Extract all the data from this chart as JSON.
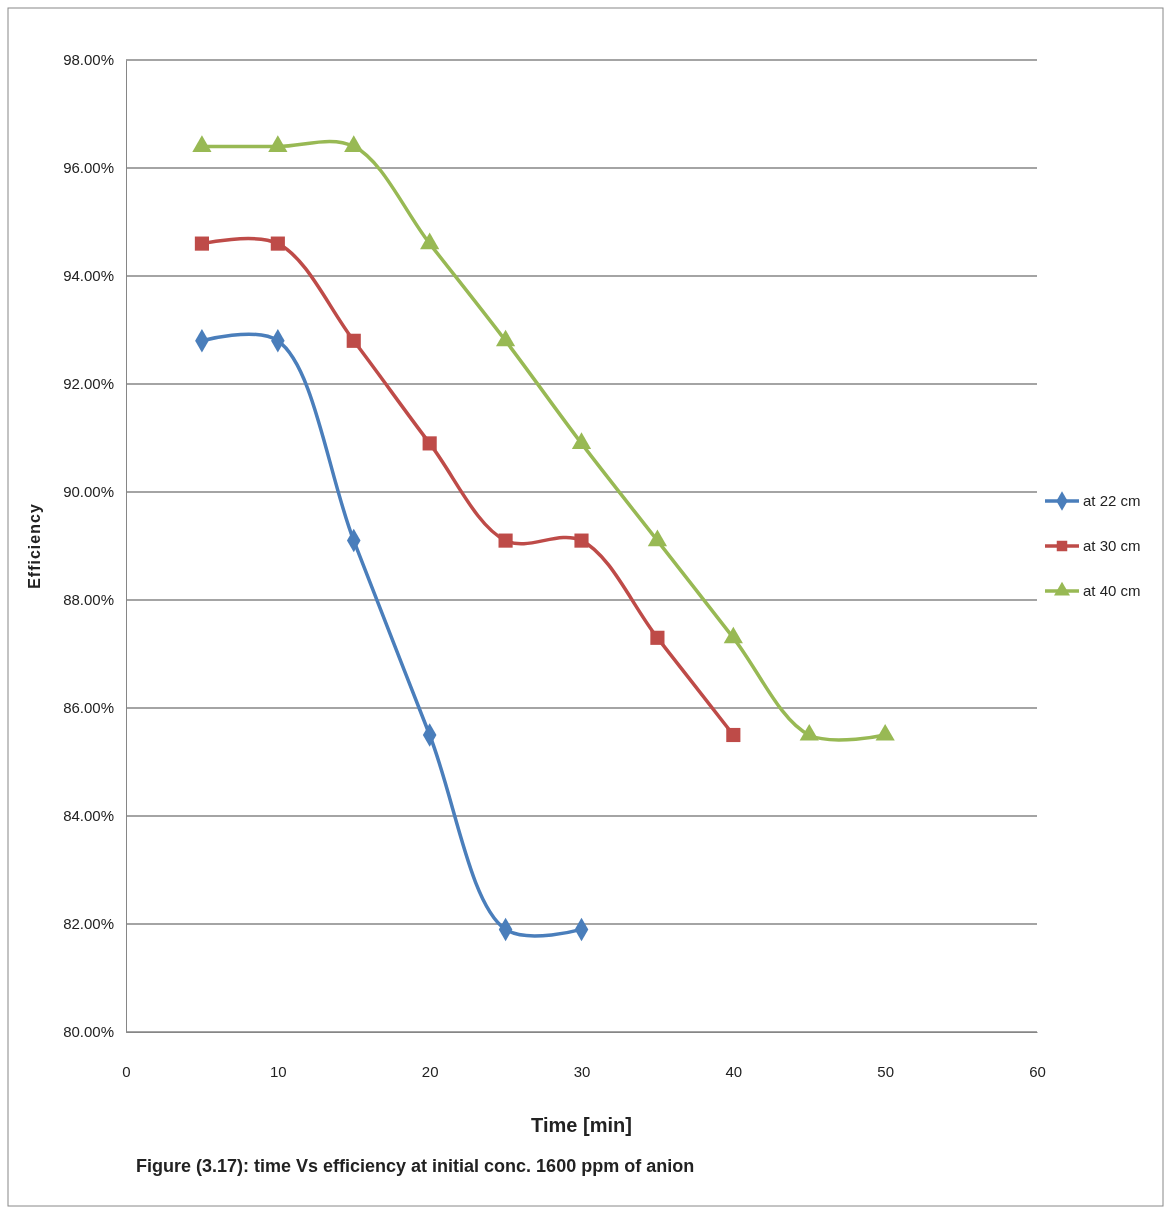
{
  "chart_data": {
    "type": "line",
    "xlabel": "Time [min]",
    "ylabel": "Efficiency",
    "series": [
      {
        "name": "at 22 cm",
        "color": "#4a7ebb",
        "marker": "diamond",
        "x": [
          5,
          10,
          15,
          20,
          25,
          30
        ],
        "values": [
          92.8,
          92.8,
          89.1,
          85.5,
          81.9,
          81.9
        ]
      },
      {
        "name": "at 30 cm",
        "color": "#be4b48",
        "marker": "square",
        "x": [
          5,
          10,
          15,
          20,
          25,
          30,
          35,
          40
        ],
        "values": [
          94.6,
          94.6,
          92.8,
          90.9,
          89.1,
          89.1,
          87.3,
          85.5
        ]
      },
      {
        "name": "at 40 cm",
        "color": "#98b954",
        "marker": "triangle",
        "x": [
          5,
          10,
          15,
          20,
          25,
          30,
          35,
          40,
          45,
          50
        ],
        "values": [
          96.4,
          96.4,
          96.4,
          94.6,
          92.8,
          90.9,
          89.1,
          87.3,
          85.5,
          85.5
        ]
      }
    ],
    "xlim": [
      0,
      60
    ],
    "xticks": [
      0,
      10,
      20,
      30,
      40,
      50,
      60
    ],
    "ylim": [
      80,
      98
    ],
    "yticks": [
      {
        "value": 80,
        "label": "80.00%"
      },
      {
        "value": 82,
        "label": "82.00%"
      },
      {
        "value": 84,
        "label": "84.00%"
      },
      {
        "value": 86,
        "label": "86.00%"
      },
      {
        "value": 88,
        "label": "88.00%"
      },
      {
        "value": 90,
        "label": "90.00%"
      },
      {
        "value": 92,
        "label": "92.00%"
      },
      {
        "value": 94,
        "label": "94.00%"
      },
      {
        "value": 96,
        "label": "96.00%"
      },
      {
        "value": 98,
        "label": "98.00%"
      }
    ],
    "grid": "y",
    "legend": "right",
    "line_style": "solid",
    "annotations": [
      "Figure (3.17): time Vs efficiency at initial conc. 1600 ppm of anion"
    ]
  }
}
